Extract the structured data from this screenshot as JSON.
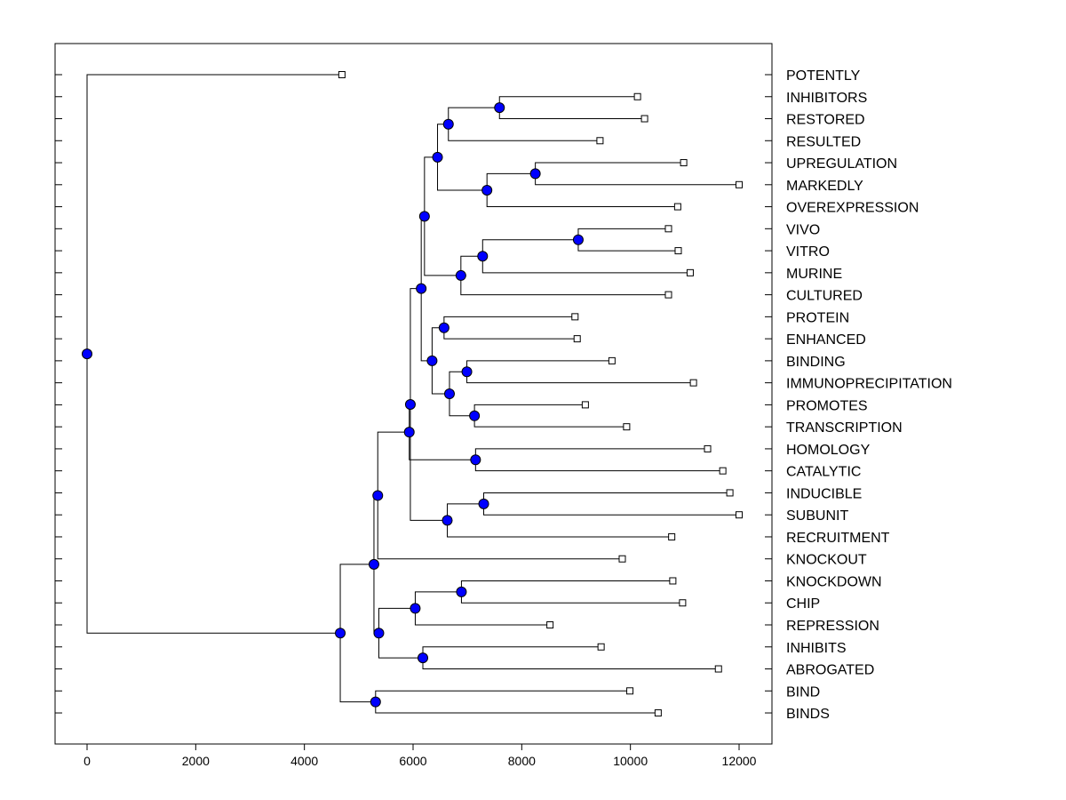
{
  "chart_data": {
    "type": "dendrogram",
    "title": "",
    "xlabel": "",
    "ylabel": "",
    "xlim": [
      -600,
      12600
    ],
    "xticks": [
      0,
      2000,
      4000,
      6000,
      8000,
      10000,
      12000
    ],
    "xtick_labels": [
      "0",
      "2000",
      "4000",
      "6000",
      "8000",
      "10000",
      "12000"
    ],
    "colors": {
      "node": "#0000ff",
      "line": "#000000",
      "leaf_marker": "#ffffff"
    },
    "leaves": [
      {
        "label": "POTENTLY",
        "x": 4690
      },
      {
        "label": "INHIBITORS",
        "x": 10130
      },
      {
        "label": "RESTORED",
        "x": 10260
      },
      {
        "label": "RESULTED",
        "x": 9440
      },
      {
        "label": "UPREGULATION",
        "x": 10980
      },
      {
        "label": "MARKEDLY",
        "x": 12000
      },
      {
        "label": "OVEREXPRESSION",
        "x": 10870
      },
      {
        "label": "VIVO",
        "x": 10700
      },
      {
        "label": "VITRO",
        "x": 10880
      },
      {
        "label": "MURINE",
        "x": 11100
      },
      {
        "label": "CULTURED",
        "x": 10700
      },
      {
        "label": "PROTEIN",
        "x": 8980
      },
      {
        "label": "ENHANCED",
        "x": 9020
      },
      {
        "label": "BINDING",
        "x": 9660
      },
      {
        "label": "IMMUNOPRECIPITATION",
        "x": 11160
      },
      {
        "label": "PROMOTES",
        "x": 9170
      },
      {
        "label": "TRANSCRIPTION",
        "x": 9930
      },
      {
        "label": "HOMOLOGY",
        "x": 11420
      },
      {
        "label": "CATALYTIC",
        "x": 11700
      },
      {
        "label": "INDUCIBLE",
        "x": 11830
      },
      {
        "label": "SUBUNIT",
        "x": 12000
      },
      {
        "label": "RECRUITMENT",
        "x": 10760
      },
      {
        "label": "KNOCKOUT",
        "x": 9850
      },
      {
        "label": "KNOCKDOWN",
        "x": 10780
      },
      {
        "label": "CHIP",
        "x": 10960
      },
      {
        "label": "REPRESSION",
        "x": 8520
      },
      {
        "label": "INHIBITS",
        "x": 9460
      },
      {
        "label": "ABROGATED",
        "x": 11620
      },
      {
        "label": "BIND",
        "x": 9990
      },
      {
        "label": "BINDS",
        "x": 10510
      }
    ],
    "merges": [
      {
        "id": "n1",
        "height": 7590,
        "children": [
          "L1",
          "L2"
        ]
      },
      {
        "id": "n2",
        "height": 6650,
        "children": [
          "n1",
          "L3"
        ]
      },
      {
        "id": "n3",
        "height": 8250,
        "children": [
          "L4",
          "L5"
        ]
      },
      {
        "id": "n4",
        "height": 7360,
        "children": [
          "n3",
          "L6"
        ]
      },
      {
        "id": "n5",
        "height": 6450,
        "children": [
          "n2",
          "n4"
        ]
      },
      {
        "id": "n6",
        "height": 9040,
        "children": [
          "L7",
          "L8"
        ]
      },
      {
        "id": "n7",
        "height": 7280,
        "children": [
          "n6",
          "L9"
        ]
      },
      {
        "id": "n8",
        "height": 6880,
        "children": [
          "n7",
          "L10"
        ]
      },
      {
        "id": "n9",
        "height": 6210,
        "children": [
          "n5",
          "n8"
        ]
      },
      {
        "id": "n10",
        "height": 6570,
        "children": [
          "L11",
          "L12"
        ]
      },
      {
        "id": "n11",
        "height": 6990,
        "children": [
          "L13",
          "L14"
        ]
      },
      {
        "id": "n12",
        "height": 7130,
        "children": [
          "L15",
          "L16"
        ]
      },
      {
        "id": "n13",
        "height": 6670,
        "children": [
          "n11",
          "n12"
        ]
      },
      {
        "id": "n14",
        "height": 6350,
        "children": [
          "n10",
          "n13"
        ]
      },
      {
        "id": "n15",
        "height": 6150,
        "children": [
          "n9",
          "n14"
        ]
      },
      {
        "id": "n16",
        "height": 7150,
        "children": [
          "L17",
          "L18"
        ]
      },
      {
        "id": "n17",
        "height": 7300,
        "children": [
          "L19",
          "L20"
        ]
      },
      {
        "id": "n18",
        "height": 6630,
        "children": [
          "n17",
          "L21"
        ]
      },
      {
        "id": "n19",
        "height": 5950,
        "children": [
          "n15",
          "n18"
        ]
      },
      {
        "id": "n20",
        "height": 5930,
        "children": [
          "n16",
          "n19"
        ]
      },
      {
        "id": "n21",
        "height": 5350,
        "children": [
          "n20",
          "L22"
        ]
      },
      {
        "id": "n22",
        "height": 6890,
        "children": [
          "L23",
          "L24"
        ]
      },
      {
        "id": "n23",
        "height": 6040,
        "children": [
          "n22",
          "L25"
        ]
      },
      {
        "id": "n24",
        "height": 6180,
        "children": [
          "L26",
          "L27"
        ]
      },
      {
        "id": "n25",
        "height": 5370,
        "children": [
          "n23",
          "n24"
        ]
      },
      {
        "id": "n26",
        "height": 5280,
        "children": [
          "n21",
          "n25"
        ]
      },
      {
        "id": "n27",
        "height": 5310,
        "children": [
          "L28",
          "L29"
        ]
      },
      {
        "id": "n28",
        "height": 4660,
        "children": [
          "n26",
          "n27"
        ]
      },
      {
        "id": "n29",
        "height": 0,
        "children": [
          "L0",
          "n28"
        ]
      }
    ]
  }
}
